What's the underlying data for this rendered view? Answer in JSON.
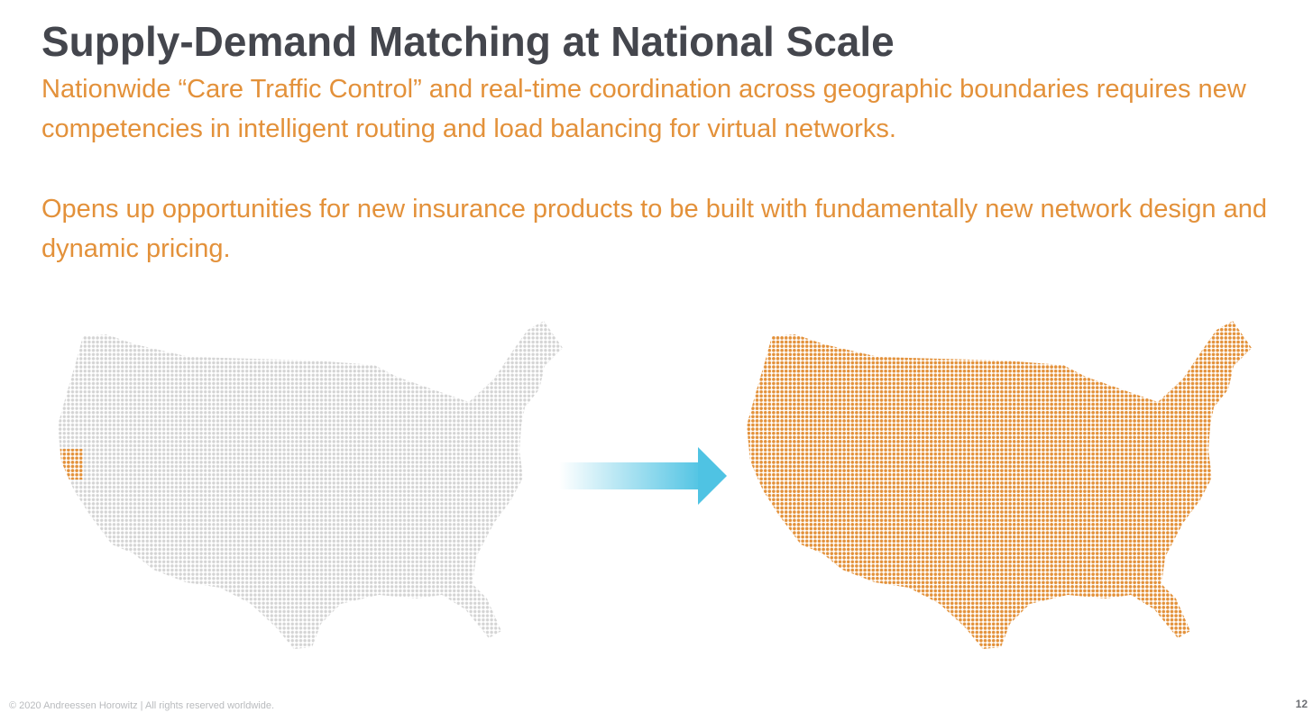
{
  "slide": {
    "title": "Supply-Demand Matching at National Scale",
    "paragraphs": [
      "Nationwide “Care Traffic Control” and real-time coordination across geographic boundaries requires new competencies in intelligent routing and load balancing for virtual networks.",
      "Opens up opportunities for new insurance products to be built with fundamentally new network design and dynamic pricing."
    ],
    "footer": "© 2020 Andreessen Horowitz | All rights reserved worldwide.",
    "page_number": "12"
  },
  "maps": {
    "left": {
      "name": "us-dot-map-before",
      "base_color": "#d4d4d4",
      "highlight_color": "#e3913a",
      "highlight_region": "northern-california"
    },
    "right": {
      "name": "us-dot-map-after",
      "base_color": "#e3913a"
    }
  },
  "arrow": {
    "icon": "right-arrow-icon",
    "color": "#4fc3e3"
  }
}
